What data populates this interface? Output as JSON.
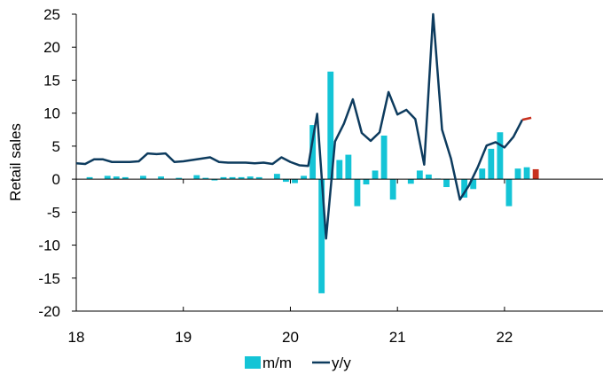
{
  "chart_data": {
    "type": "bar",
    "title": "",
    "xlabel": "",
    "ylabel": "Retail sales",
    "ylim": [
      -20,
      25
    ],
    "yticks": [
      25,
      20,
      15,
      10,
      5,
      0,
      -5,
      -10,
      -15,
      -20
    ],
    "xlim": [
      2018.0,
      2022.92
    ],
    "xticks": [
      {
        "value": 2018,
        "label": "18"
      },
      {
        "value": 2019,
        "label": "19"
      },
      {
        "value": 2020,
        "label": "20"
      },
      {
        "value": 2021,
        "label": "21"
      },
      {
        "value": 2022,
        "label": "22"
      }
    ],
    "grid": "none",
    "legend": "bottom-center",
    "colors": {
      "mm": "#14c4d6",
      "mm_latest": "#c8301e",
      "yy": "#0d3b5e",
      "yy_latest": "#c8301e"
    },
    "series": [
      {
        "name": "m/m",
        "kind": "bar",
        "start": "2018-01",
        "values": [
          0.0,
          0.3,
          0.0,
          0.5,
          0.4,
          0.3,
          0.0,
          0.5,
          0.0,
          0.4,
          0.0,
          0.2,
          0.0,
          0.6,
          0.2,
          -0.2,
          0.3,
          0.3,
          0.3,
          0.4,
          0.3,
          0.0,
          0.8,
          -0.4,
          -0.6,
          0.5,
          8.2,
          -17.3,
          16.3,
          2.9,
          3.7,
          -4.1,
          -0.8,
          1.3,
          6.6,
          -3.1,
          0.0,
          -0.7,
          1.3,
          0.7,
          0.1,
          -1.2,
          0.0,
          -2.8,
          -1.5,
          1.6,
          4.6,
          7.1,
          -4.1,
          1.6,
          1.8,
          1.5
        ],
        "latest_index": 51
      },
      {
        "name": "y/y",
        "kind": "line",
        "start": "2018-01",
        "values": [
          2.4,
          2.3,
          3.0,
          3.0,
          2.6,
          2.6,
          2.6,
          2.7,
          3.9,
          3.8,
          3.9,
          2.6,
          2.7,
          2.9,
          3.1,
          3.3,
          2.6,
          2.5,
          2.5,
          2.5,
          2.4,
          2.5,
          2.3,
          3.3,
          2.6,
          2.1,
          2.0,
          9.9,
          -9.0,
          5.7,
          8.4,
          12.1,
          7.0,
          5.8,
          7.1,
          13.2,
          9.8,
          10.5,
          9.1,
          2.2,
          25.0,
          7.5,
          3.1,
          -3.1,
          -1.0,
          1.8,
          5.1,
          5.6,
          4.8,
          6.4,
          9.0,
          9.3
        ],
        "latest_from_index": 50
      }
    ]
  }
}
